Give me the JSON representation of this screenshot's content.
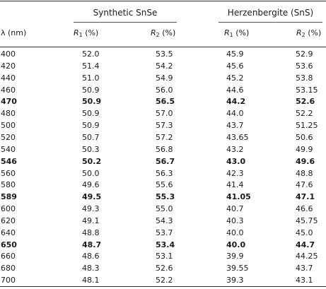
{
  "table": {
    "group_headers": {
      "synthetic": "Synthetic SnSe",
      "herzenbergite": "Herzenbergite (SnS)"
    },
    "column_headers": {
      "wavelength": "λ (nm)",
      "r1_symbol": "R",
      "r1_sub": "1",
      "r1_unit": " (%)",
      "r2_symbol": "R",
      "r2_sub": "2",
      "r2_unit": " (%)"
    },
    "rows": [
      {
        "wl": "400",
        "s1": "52.0",
        "s2": "53.5",
        "h1": "45.9",
        "h2": "52.9",
        "bold": false
      },
      {
        "wl": "420",
        "s1": "51.4",
        "s2": "54.2",
        "h1": "45.6",
        "h2": "53.6",
        "bold": false
      },
      {
        "wl": "440",
        "s1": "51.0",
        "s2": "54.9",
        "h1": "45.2",
        "h2": "53.8",
        "bold": false
      },
      {
        "wl": "460",
        "s1": "50.9",
        "s2": "56.0",
        "h1": "44.6",
        "h2": "53.15",
        "bold": false
      },
      {
        "wl": "470",
        "s1": "50.9",
        "s2": "56.5",
        "h1": "44.2",
        "h2": "52.6",
        "bold": true
      },
      {
        "wl": "480",
        "s1": "50.9",
        "s2": "57.0",
        "h1": "44.0",
        "h2": "52.2",
        "bold": false
      },
      {
        "wl": "500",
        "s1": "50.9",
        "s2": "57.3",
        "h1": "43.7",
        "h2": "51.25",
        "bold": false
      },
      {
        "wl": "520",
        "s1": "50.7",
        "s2": "57.2",
        "h1": "43.65",
        "h2": "50.6",
        "bold": false
      },
      {
        "wl": "540",
        "s1": "50.3",
        "s2": "56.8",
        "h1": "43.2",
        "h2": "49.9",
        "bold": false
      },
      {
        "wl": "546",
        "s1": "50.2",
        "s2": "56.7",
        "h1": "43.0",
        "h2": "49.6",
        "bold": true
      },
      {
        "wl": "560",
        "s1": "50.0",
        "s2": "56.3",
        "h1": "42.3",
        "h2": "48.8",
        "bold": false
      },
      {
        "wl": "580",
        "s1": "49.6",
        "s2": "55.6",
        "h1": "41.4",
        "h2": "47.6",
        "bold": false
      },
      {
        "wl": "589",
        "s1": "49.5",
        "s2": "55.3",
        "h1": "41.05",
        "h2": "47.1",
        "bold": true
      },
      {
        "wl": "600",
        "s1": "49.3",
        "s2": "55.0",
        "h1": "40.7",
        "h2": "46.6",
        "bold": false
      },
      {
        "wl": "620",
        "s1": "49.1",
        "s2": "54.3",
        "h1": "40.3",
        "h2": "45.75",
        "bold": false
      },
      {
        "wl": "640",
        "s1": "48.8",
        "s2": "53.7",
        "h1": "40.0",
        "h2": "45.0",
        "bold": false
      },
      {
        "wl": "650",
        "s1": "48.7",
        "s2": "53.4",
        "h1": "40.0",
        "h2": "44.7",
        "bold": true
      },
      {
        "wl": "660",
        "s1": "48.6",
        "s2": "53.1",
        "h1": "39.9",
        "h2": "44.25",
        "bold": false
      },
      {
        "wl": "680",
        "s1": "48.3",
        "s2": "52.6",
        "h1": "39.55",
        "h2": "43.7",
        "bold": false
      },
      {
        "wl": "700",
        "s1": "48.1",
        "s2": "52.2",
        "h1": "39.3",
        "h2": "43.1",
        "bold": false
      }
    ]
  }
}
